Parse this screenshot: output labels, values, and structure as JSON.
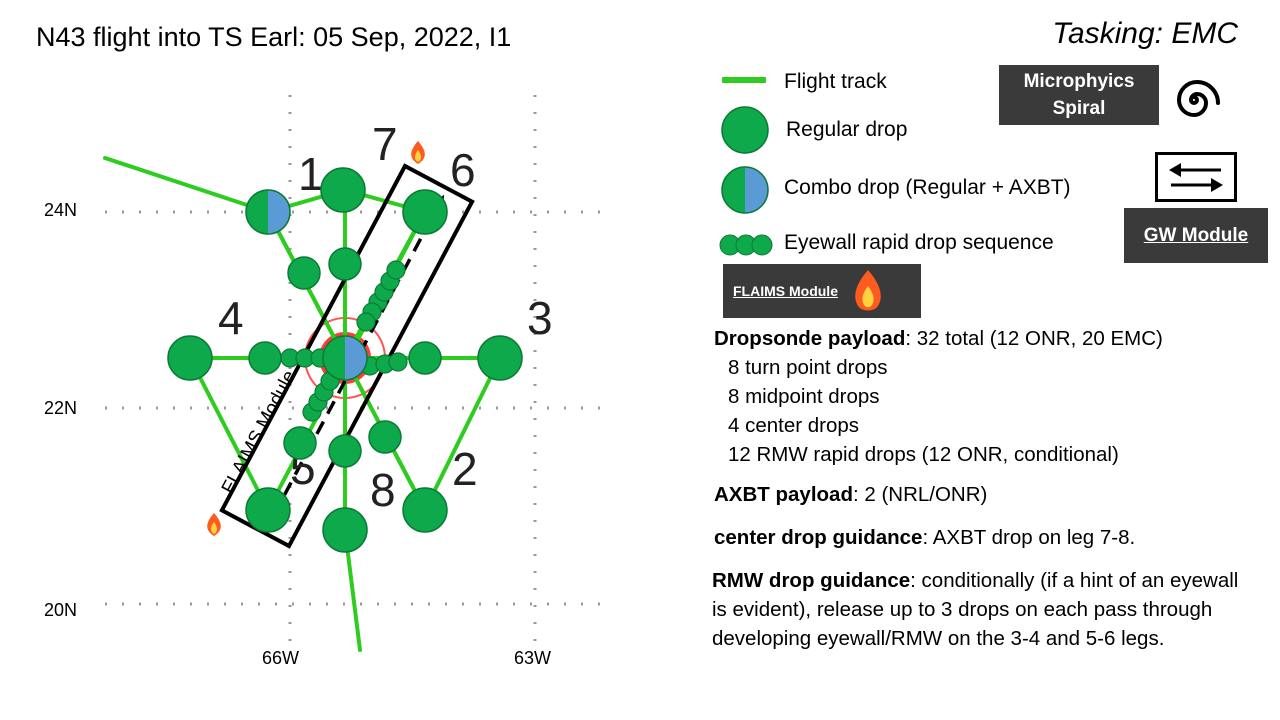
{
  "title": "N43 flight into TS Earl: 05 Sep, 2022, I1",
  "tasking": "Tasking: EMC",
  "map": {
    "lat_labels": [
      "24N",
      "22N",
      "20N"
    ],
    "lon_labels": [
      "66W",
      "63W"
    ],
    "point_labels": [
      "1",
      "2",
      "3",
      "4",
      "5",
      "6",
      "7",
      "8"
    ],
    "module_label": "FLAIMS Module",
    "colors": {
      "track": "#2ecc1f",
      "drop": "#0ea94a",
      "axbt": "#5b9bd5",
      "center": "#ff3333"
    }
  },
  "legend": {
    "flight_track": "Flight track",
    "regular_drop": "Regular drop",
    "combo_drop": "Combo drop (Regular + AXBT)",
    "eyewall_sequence": "Eyewall rapid drop sequence",
    "microphysics_spiral": "Microphyics Spiral",
    "gw_module": "GW Module",
    "flaims_module": "FLAIMS Module"
  },
  "payload": {
    "dropsonde_label": "Dropsonde payload",
    "dropsonde_value": ": 32 total (12 ONR, 20 EMC)",
    "lines": [
      "8 turn point drops",
      "8 midpoint drops",
      "4 center drops",
      "12 RMW rapid drops (12 ONR, conditional)"
    ],
    "axbt_label": "AXBT payload",
    "axbt_value": ": 2 (NRL/ONR)",
    "center_label": "center drop guidance",
    "center_value": ": AXBT drop on leg 7-8.",
    "rmw_label": "RMW drop guidance",
    "rmw_value": ": conditionally (if a hint of an eyewall is evident), release up to 3 drops on each pass through developing eyewall/RMW on the 3-4 and 5-6 legs."
  }
}
